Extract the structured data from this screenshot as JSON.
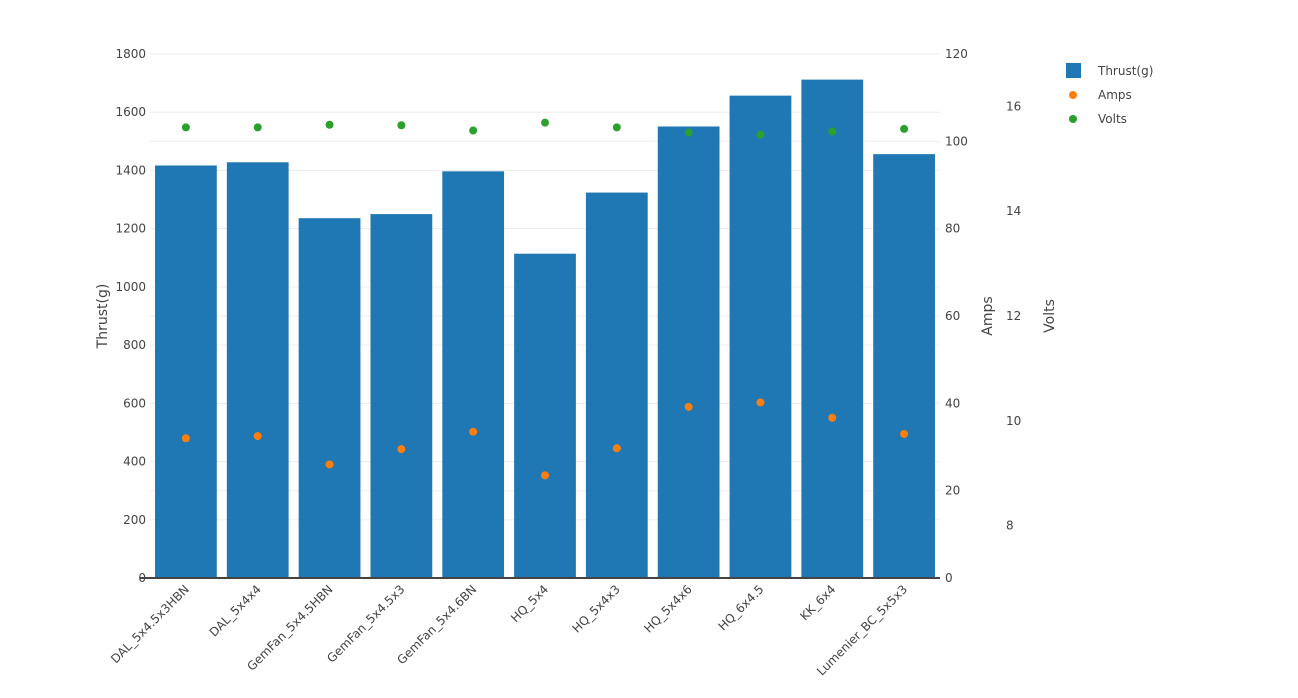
{
  "chart_data": {
    "type": "bar",
    "categories": [
      "DAL_5x4.5x3HBN",
      "DAL_5x4x4",
      "GemFan_5x4.5HBN",
      "GemFan_5x4.5x3",
      "GemFan_5x4.6BN",
      "HQ_5x4",
      "HQ_5x4x3",
      "HQ_5x4x6",
      "HQ_6x4.5",
      "KK_6x4",
      "Lumenier_BC_5x5x3"
    ],
    "series": [
      {
        "name": "Thrust(g)",
        "type": "bar",
        "axis": "y",
        "color": "#1f77b4",
        "values": [
          1417,
          1428,
          1236,
          1250,
          1397,
          1114,
          1324,
          1551,
          1657,
          1712,
          1456
        ]
      },
      {
        "name": "Amps",
        "type": "scatter",
        "axis": "y2",
        "color": "#ff7f0e",
        "values": [
          32,
          32.5,
          26,
          29.5,
          33.5,
          23.5,
          29.7,
          39.2,
          40.2,
          36.7,
          33
        ]
      },
      {
        "name": "Volts",
        "type": "scatter",
        "axis": "y3",
        "color": "#2ca02c",
        "values": [
          15.6,
          15.6,
          15.65,
          15.64,
          15.54,
          15.69,
          15.6,
          15.5,
          15.46,
          15.52,
          15.57
        ]
      }
    ],
    "ylabel": "Thrust(g)",
    "y2label": "Amps",
    "y3label": "Volts",
    "ylim": [
      0,
      1800
    ],
    "y2lim": [
      0,
      120
    ],
    "y3lim": [
      7,
      17
    ],
    "yticks": [
      0,
      200,
      400,
      600,
      800,
      1000,
      1200,
      1400,
      1600,
      1800
    ],
    "y2ticks": [
      0,
      20,
      40,
      60,
      80,
      100,
      120
    ],
    "y3ticks": [
      8,
      10,
      12,
      14,
      16
    ],
    "grid": true,
    "legend": "top-right"
  }
}
